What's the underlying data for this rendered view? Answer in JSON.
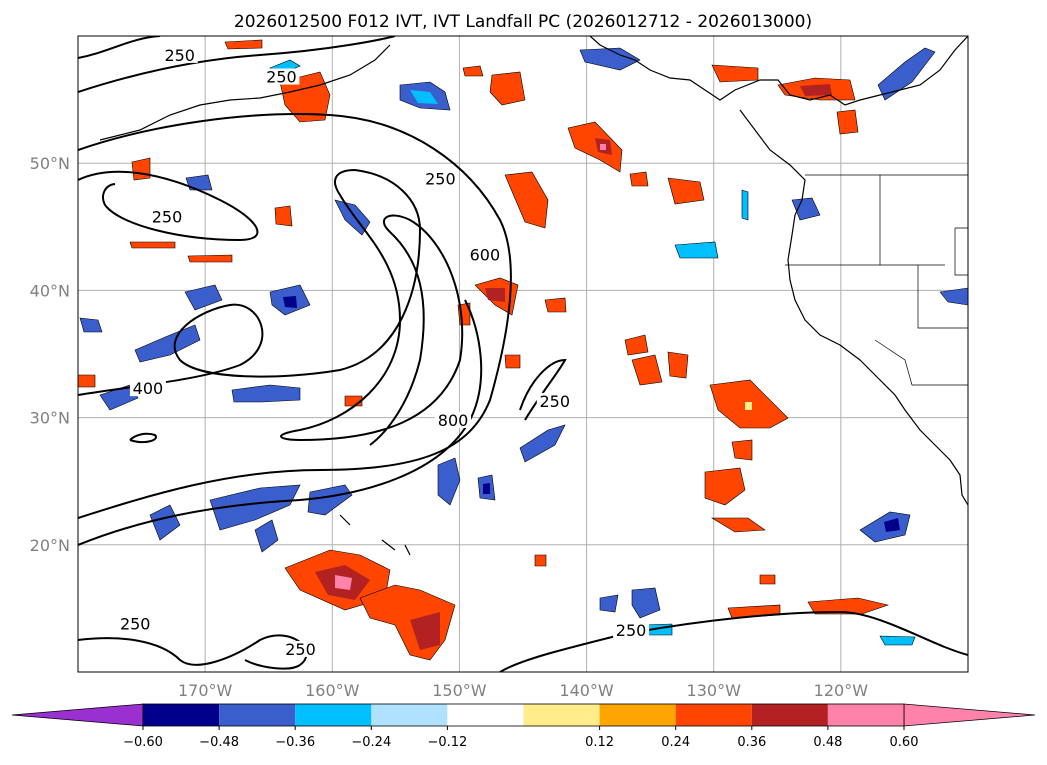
{
  "title": "2026012500 F012 IVT, IVT Landfall PC (2026012712 - 2026013000)",
  "map": {
    "lon_ticks": [
      "170°W",
      "160°W",
      "150°W",
      "140°W",
      "130°W",
      "120°W"
    ],
    "lat_ticks": [
      "50°N",
      "40°N",
      "30°N",
      "20°N"
    ],
    "extent": {
      "lon": [
        -180,
        -110
      ],
      "lat": [
        10,
        60
      ]
    },
    "grid": true,
    "contour_labels": [
      {
        "text": "250",
        "lon": -172,
        "lat": 58.2
      },
      {
        "text": "250",
        "lon": -164,
        "lat": 56.5
      },
      {
        "text": "250",
        "lon": -151.5,
        "lat": 48.5
      },
      {
        "text": "250",
        "lon": -173,
        "lat": 45.5
      },
      {
        "text": "600",
        "lon": -148,
        "lat": 42.5
      },
      {
        "text": "400",
        "lon": -174.5,
        "lat": 32
      },
      {
        "text": "800",
        "lon": -150.5,
        "lat": 29.5
      },
      {
        "text": "250",
        "lon": -142.5,
        "lat": 31
      },
      {
        "text": "250",
        "lon": -175.5,
        "lat": 13.5
      },
      {
        "text": "250",
        "lon": -162.5,
        "lat": 11.5
      },
      {
        "text": "250",
        "lon": -136.5,
        "lat": 13
      }
    ]
  },
  "colorbar": {
    "ticks": [
      "−0.60",
      "−0.48",
      "−0.36",
      "−0.24",
      "−0.12",
      "0.12",
      "0.24",
      "0.36",
      "0.48",
      "0.60"
    ],
    "colors": {
      "under": "#9b30d0",
      "bins": [
        "#00008b",
        "#3a5fcd",
        "#00bfff",
        "#b0e2ff",
        "#ffffff",
        "#ffec8b",
        "#ffa500",
        "#ff4500",
        "#b22222",
        "#ff82ab"
      ],
      "over": "#ff82ab"
    }
  }
}
